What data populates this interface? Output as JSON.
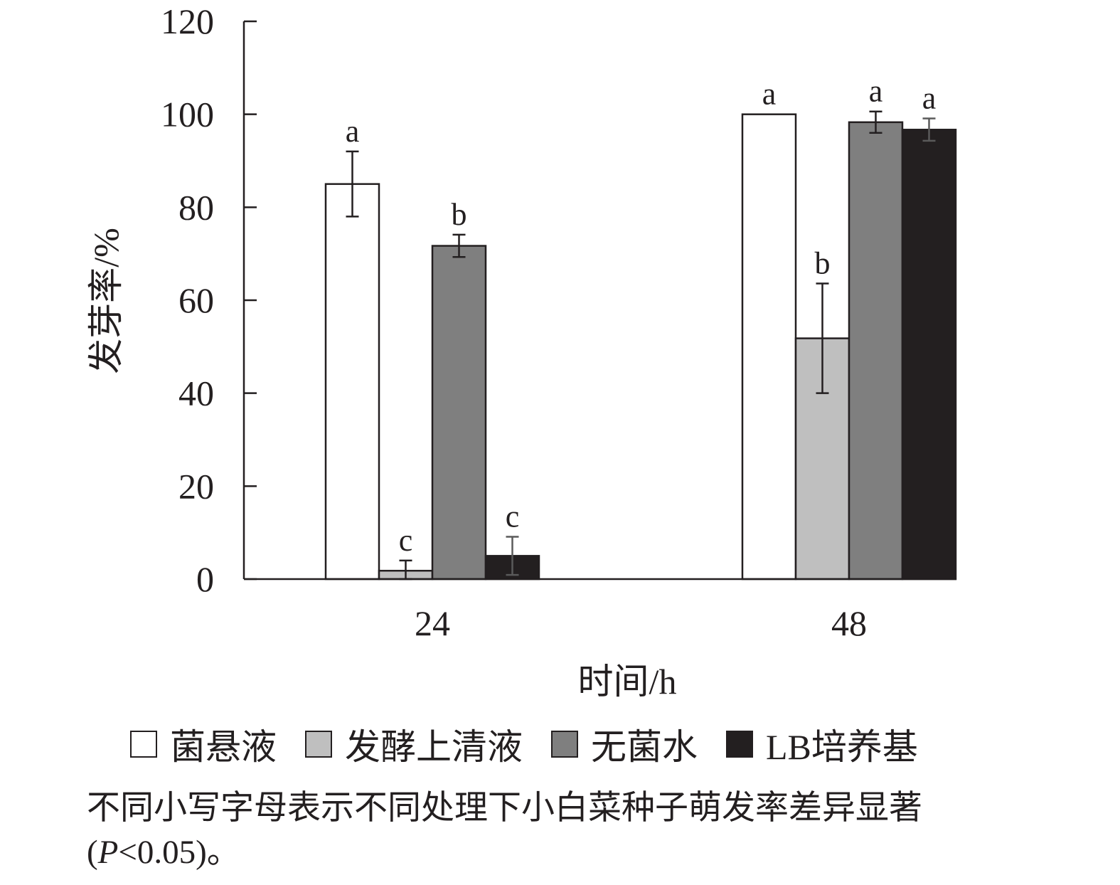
{
  "chart_data": {
    "type": "bar",
    "categories": [
      "24",
      "48"
    ],
    "series": [
      {
        "name": "菌悬液",
        "color": "#ffffff",
        "values": [
          85,
          100
        ],
        "errors": [
          7,
          null
        ],
        "letters": [
          "a",
          "a"
        ]
      },
      {
        "name": "发酵上清液",
        "color": "#bfbfbf",
        "values": [
          1.8,
          51.8
        ],
        "errors": [
          2.2,
          11.8
        ],
        "letters": [
          "c",
          "b"
        ]
      },
      {
        "name": "无菌水",
        "color": "#7f7f7f",
        "values": [
          71.7,
          98.3
        ],
        "errors": [
          2.4,
          2.3
        ],
        "letters": [
          "b",
          "a"
        ]
      },
      {
        "name": "LB培养基",
        "color": "#231f20",
        "values": [
          5,
          96.7
        ],
        "errors": [
          4.1,
          2.4
        ],
        "letters": [
          "c",
          "a"
        ]
      }
    ],
    "xlabel": "时间/h",
    "ylabel": "发芽率/%",
    "ylim": [
      0,
      120
    ],
    "yticks": [
      0,
      20,
      40,
      60,
      80,
      100,
      120
    ],
    "grid": false,
    "legend_position": "bottom"
  },
  "footnote": {
    "line1": "不同小写字母表示不同处理下小白菜种子萌发率差异显著",
    "line2_prefix": "(",
    "line2_italic": "P",
    "line2_suffix": "<0.05)。"
  }
}
